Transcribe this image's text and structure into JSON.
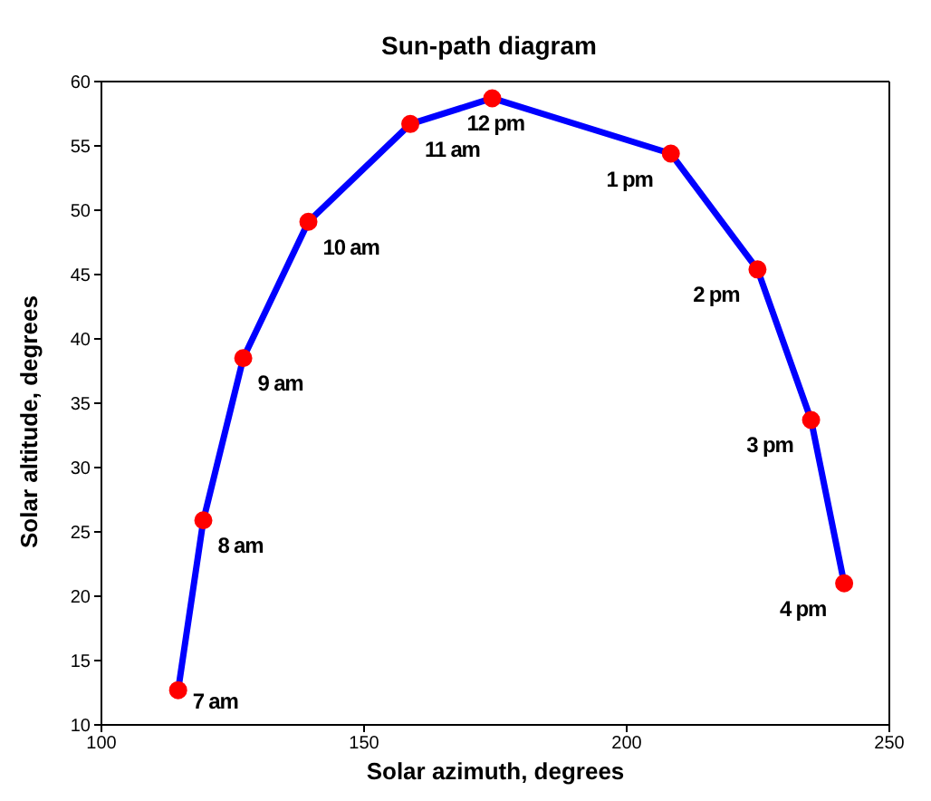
{
  "chart_data": {
    "type": "line",
    "title": "Sun-path diagram",
    "xlabel": "Solar azimuth, degrees",
    "ylabel": "Solar altitude, degrees",
    "series": [
      {
        "color": "#0000ff",
        "colors": [
          "#ff0000",
          "#ff0000",
          "#ff0000",
          "#ff0000",
          "#ff0000",
          "#ff0000",
          "#ff0000",
          "#ff0000",
          "#ff0000",
          "#ff0000"
        ],
        "x": [
          114.6,
          119.4,
          127.0,
          139.4,
          158.8,
          174.4,
          208.4,
          224.9,
          235.1,
          241.4
        ],
        "values": [
          12.7,
          25.9,
          38.5,
          49.1,
          56.7,
          58.7,
          54.4,
          45.4,
          33.7,
          21.0
        ]
      }
    ],
    "marker": "circle",
    "line_style": "solid",
    "xlim": [
      100,
      250
    ],
    "xticks": [
      100,
      150,
      200,
      250
    ],
    "ylim": [
      10,
      60
    ],
    "yticks": [
      10,
      15,
      20,
      25,
      30,
      35,
      40,
      45,
      50,
      55,
      60
    ],
    "annotations": [
      {
        "text": "7 am",
        "x": 114.6,
        "y": 12.7
      },
      {
        "text": "8 am",
        "x": 119.4,
        "y": 25.9
      },
      {
        "text": "9 am",
        "x": 127.0,
        "y": 38.5
      },
      {
        "text": "10 am",
        "x": 139.4,
        "y": 49.1
      },
      {
        "text": "11 am",
        "x": 158.8,
        "y": 56.7
      },
      {
        "text": "12 pm",
        "x": 174.4,
        "y": 58.7
      },
      {
        "text": "1 pm",
        "x": 208.4,
        "y": 54.4
      },
      {
        "text": "2 pm",
        "x": 224.9,
        "y": 45.4
      },
      {
        "text": "3 pm",
        "x": 235.1,
        "y": 33.7
      },
      {
        "text": "4 pm",
        "x": 241.4,
        "y": 21.0
      }
    ]
  }
}
